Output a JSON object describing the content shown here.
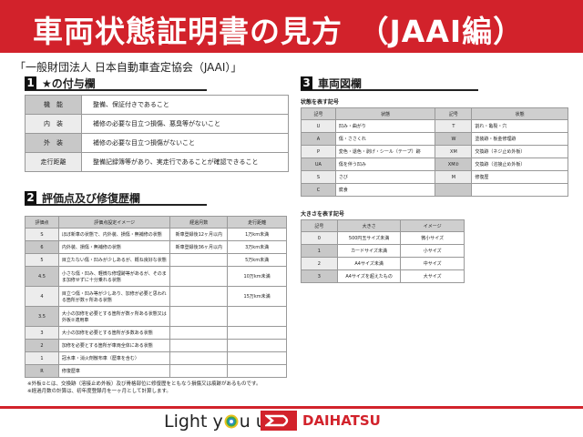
{
  "header": {
    "title": "車両状態証明書の見方　（JAAI編）",
    "subtitle": "「一般財団法人 日本自動車査定協会（JAAI）」",
    "brand_color": "#d2222b"
  },
  "section1": {
    "num": "1",
    "label": "★の付与欄",
    "rows": [
      {
        "key": "機　能",
        "value": "整備、保証付きであること"
      },
      {
        "key": "内　装",
        "value": "補修の必要な目立つ損傷、悪臭等がないこと"
      },
      {
        "key": "外　装",
        "value": "補修の必要な目立つ損傷がないこと"
      },
      {
        "key": "走行距離",
        "value": "整備記録簿等があり、実走行であることが確認できること"
      }
    ]
  },
  "section2": {
    "num": "2",
    "label": "評価点及び修復歴欄",
    "headers": [
      "評価点",
      "評価点設定イメージ",
      "経過月数",
      "走行距離"
    ],
    "rows": [
      [
        "S",
        "ほぼ新車の状態で、内外装、損傷・無補修の状態",
        "新車登録後12ヶ月以内",
        "1万km未満"
      ],
      [
        "6",
        "内外装、損傷・無補修の状態",
        "新車登録後36ヶ月以内",
        "3万km未満"
      ],
      [
        "5",
        "目立たない傷・凹みが少しあるが、概ね良好な状態",
        "",
        "5万km未満"
      ],
      [
        "4.5",
        "小さな傷・凹み、軽微な修理跡等があるが、そのまま加修せずに十分乗れる状態",
        "",
        "10万km未満"
      ],
      [
        "4",
        "目立つ傷・凹み等が少しあり、加修が必要と思われる箇所が数ヶ所ある状態",
        "",
        "15万km未満"
      ],
      [
        "3.5",
        "大小の加修を必要とする箇所が数ヶ所ある状態又は外板②適用車",
        "",
        ""
      ],
      [
        "3",
        "大小の加修を必要とする箇所が多数ある状態",
        "",
        ""
      ],
      [
        "2",
        "加修を必要とする箇所が車両全体にある状態",
        "",
        ""
      ],
      [
        "1",
        "冠水車・消火剤散布車（歴車を含む）",
        "",
        ""
      ],
      [
        "R",
        "修復歴車",
        "",
        ""
      ]
    ]
  },
  "section3": {
    "num": "3",
    "label": "車両図欄",
    "condition_caption": "状態を表す記号",
    "condition_headers": [
      "記号",
      "状態",
      "記号",
      "状態"
    ],
    "condition_rows": [
      [
        "U",
        "凹み・曲がり",
        "T",
        "割れ・亀裂・穴"
      ],
      [
        "A",
        "傷・ささくれ",
        "W",
        "塗装跡・板金修理跡"
      ],
      [
        "P",
        "変色・退色・剥げ・シール（テープ）跡",
        "XM",
        "交換跡（ネジ止め外板）"
      ],
      [
        "UA",
        "傷を伴う凹み",
        "XM②",
        "交換跡（溶接止め外板）"
      ],
      [
        "S",
        "さび",
        "M",
        "修復歴"
      ],
      [
        "C",
        "腐食",
        "",
        ""
      ]
    ],
    "size_caption": "大きさを表す記号",
    "size_headers": [
      "記号",
      "大きさ",
      "イメージ"
    ],
    "size_rows": [
      [
        "0",
        "500円玉サイズ未満",
        "微小サイズ"
      ],
      [
        "1",
        "カードサイズ未満",
        "小サイズ"
      ],
      [
        "2",
        "A4サイズ未満",
        "中サイズ"
      ],
      [
        "3",
        "A4サイズを超えたもの",
        "大サイズ"
      ]
    ]
  },
  "notes": [
    "※外板②とは、交換跡（溶接止め外板）及び骨格部位に修復歴をともなう損傷又は痕跡があるものです。",
    "※経過月数の計算は、初年度登録月を一ヶ月として計算します。"
  ],
  "footer": {
    "slogan_pre": "Light y",
    "slogan_post": "u up",
    "brand": "DAIHATSU"
  }
}
